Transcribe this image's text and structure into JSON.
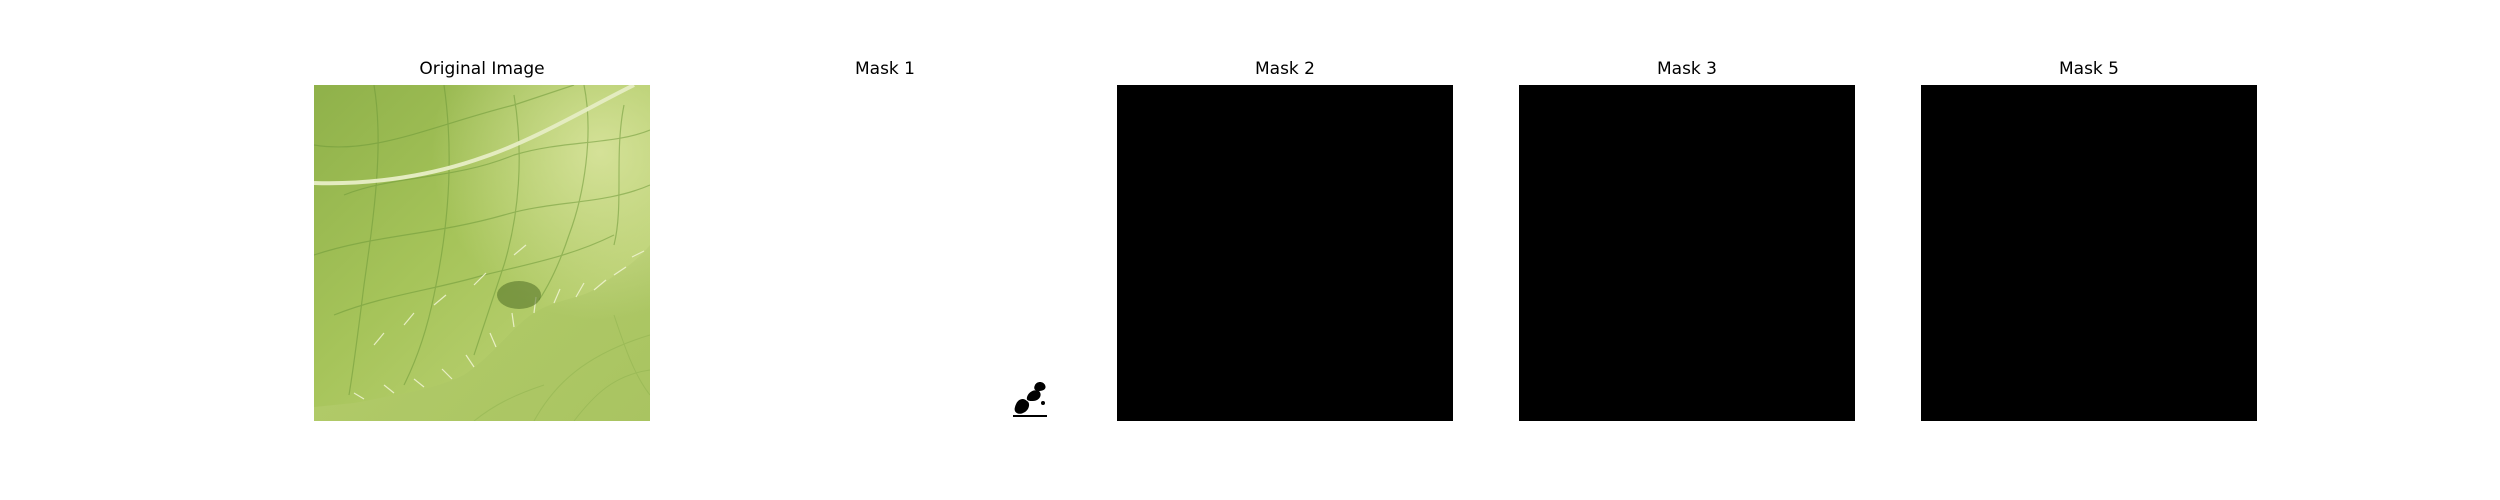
{
  "figure": {
    "panels": [
      {
        "title": "Original Image",
        "kind": "photo",
        "subject": "leaf-closeup"
      },
      {
        "title": "Mask 1",
        "kind": "mask",
        "fill_color": "#ffffff"
      },
      {
        "title": "Mask 2",
        "kind": "mask",
        "fill_color": "#000000"
      },
      {
        "title": "Mask 3",
        "kind": "mask",
        "fill_color": "#000000"
      },
      {
        "title": "Mask 5",
        "kind": "mask",
        "fill_color": "#000000"
      }
    ],
    "colors": {
      "leaf_light": "#c6d97a",
      "leaf_mid": "#9fbf55",
      "leaf_dark": "#6f9a3a",
      "vein": "#e4ecc0"
    }
  }
}
